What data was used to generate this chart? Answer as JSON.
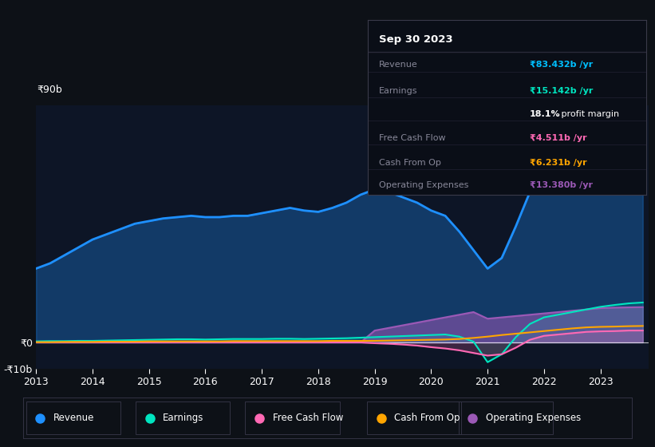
{
  "bg_color": "#0d1117",
  "chart_bg": "#0d1526",
  "title": "Sep 30 2023",
  "tooltip": {
    "Revenue": {
      "value": "₹83.432b /yr",
      "color": "#00bfff"
    },
    "Earnings": {
      "value": "₹15.142b /yr",
      "color": "#00e5c0"
    },
    "profit_margin": "18.1% profit margin",
    "Free Cash Flow": {
      "value": "₹4.511b /yr",
      "color": "#ff69b4"
    },
    "Cash From Op": {
      "value": "₹6.231b /yr",
      "color": "#ffa500"
    },
    "Operating Expenses": {
      "value": "₹13.380b /yr",
      "color": "#9b59b6"
    }
  },
  "years": [
    2013.0,
    2013.25,
    2013.5,
    2013.75,
    2014.0,
    2014.25,
    2014.5,
    2014.75,
    2015.0,
    2015.25,
    2015.5,
    2015.75,
    2016.0,
    2016.25,
    2016.5,
    2016.75,
    2017.0,
    2017.25,
    2017.5,
    2017.75,
    2018.0,
    2018.25,
    2018.5,
    2018.75,
    2019.0,
    2019.25,
    2019.5,
    2019.75,
    2020.0,
    2020.25,
    2020.5,
    2020.75,
    2021.0,
    2021.25,
    2021.5,
    2021.75,
    2022.0,
    2022.25,
    2022.5,
    2022.75,
    2023.0,
    2023.25,
    2023.5,
    2023.75
  ],
  "revenue": [
    28,
    30,
    33,
    36,
    39,
    41,
    43,
    45,
    46,
    47,
    47.5,
    48,
    47.5,
    47.5,
    48,
    48,
    49,
    50,
    51,
    50,
    49.5,
    51,
    53,
    56,
    58,
    57,
    55,
    53,
    50,
    48,
    42,
    35,
    28,
    32,
    44,
    57,
    63,
    68,
    72,
    76,
    80,
    82,
    83,
    83.4
  ],
  "earnings": [
    0.4,
    0.5,
    0.5,
    0.6,
    0.6,
    0.7,
    0.8,
    0.9,
    1.0,
    1.1,
    1.2,
    1.2,
    1.1,
    1.2,
    1.3,
    1.3,
    1.3,
    1.4,
    1.4,
    1.3,
    1.4,
    1.5,
    1.6,
    1.8,
    2.0,
    2.2,
    2.4,
    2.6,
    2.8,
    3.0,
    2.2,
    0.3,
    -7.5,
    -4.5,
    2.0,
    7.0,
    9.5,
    10.5,
    11.5,
    12.5,
    13.5,
    14.2,
    14.8,
    15.14
  ],
  "free_cash_flow": [
    0.0,
    0.0,
    0.0,
    0.0,
    0.0,
    0.0,
    0.0,
    0.0,
    0.0,
    0.0,
    0.0,
    0.0,
    0.0,
    0.0,
    0.0,
    0.0,
    0.0,
    0.0,
    0.0,
    0.0,
    0.0,
    0.0,
    0.0,
    0.0,
    -0.3,
    -0.5,
    -0.8,
    -1.2,
    -1.8,
    -2.3,
    -3.0,
    -4.0,
    -5.0,
    -4.5,
    -2.0,
    1.0,
    2.5,
    3.0,
    3.5,
    4.0,
    4.2,
    4.3,
    4.5,
    4.511
  ],
  "cash_from_op": [
    0.1,
    0.1,
    0.2,
    0.2,
    0.2,
    0.3,
    0.3,
    0.3,
    0.4,
    0.4,
    0.4,
    0.4,
    0.4,
    0.4,
    0.5,
    0.5,
    0.5,
    0.5,
    0.5,
    0.5,
    0.5,
    0.6,
    0.6,
    0.6,
    0.6,
    0.7,
    0.8,
    0.9,
    1.0,
    1.1,
    1.3,
    1.7,
    2.2,
    2.8,
    3.3,
    3.8,
    4.3,
    4.8,
    5.3,
    5.7,
    5.9,
    6.0,
    6.15,
    6.231
  ],
  "operating_expenses": [
    0.0,
    0.0,
    0.0,
    0.0,
    0.0,
    0.0,
    0.0,
    0.0,
    0.0,
    0.0,
    0.0,
    0.0,
    0.0,
    0.0,
    0.0,
    0.0,
    0.0,
    0.0,
    0.0,
    0.0,
    0.0,
    0.0,
    0.0,
    0.0,
    4.5,
    5.5,
    6.5,
    7.5,
    8.5,
    9.5,
    10.5,
    11.5,
    9.0,
    9.5,
    10.0,
    10.5,
    11.0,
    11.5,
    12.0,
    12.5,
    13.0,
    13.2,
    13.3,
    13.38
  ],
  "revenue_color": "#1e90ff",
  "earnings_color": "#00e5c0",
  "free_cash_flow_color": "#ff69b4",
  "cash_from_op_color": "#ffa500",
  "operating_expenses_color": "#9b59b6",
  "ylim": [
    -10,
    90
  ],
  "xtick_years": [
    2013,
    2014,
    2015,
    2016,
    2017,
    2018,
    2019,
    2020,
    2021,
    2022,
    2023
  ],
  "legend_labels": [
    "Revenue",
    "Earnings",
    "Free Cash Flow",
    "Cash From Op",
    "Operating Expenses"
  ],
  "legend_colors": [
    "#1e90ff",
    "#00e5c0",
    "#ff69b4",
    "#ffa500",
    "#9b59b6"
  ]
}
